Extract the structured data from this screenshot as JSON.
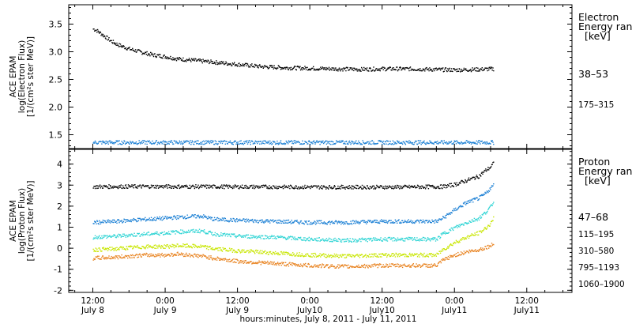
{
  "chart_data": [
    {
      "type": "scatter",
      "panel": "electron",
      "ylabel_lines": [
        "ACE EPAM",
        "log(Electron Flux)",
        "[1/(cm²s ster MeV)]"
      ],
      "legend_title": [
        "Electron",
        "Energy range",
        "[keV]"
      ],
      "yticks": [
        "1.5",
        "2.0",
        "2.5",
        "3.0",
        "3.5"
      ],
      "ylim": [
        1.25,
        3.85
      ],
      "grid": false,
      "series": [
        {
          "name": "38–53",
          "color": "#000000",
          "x": [
            0,
            0.5,
            1,
            2,
            3,
            4,
            5,
            6,
            8,
            10,
            12,
            14,
            16,
            18,
            20,
            24,
            28,
            32,
            36,
            40,
            44,
            48,
            52,
            56,
            60,
            64,
            66.5
          ],
          "y": [
            3.42,
            3.4,
            3.36,
            3.28,
            3.2,
            3.14,
            3.1,
            3.06,
            3.0,
            2.95,
            2.92,
            2.88,
            2.86,
            2.84,
            2.82,
            2.78,
            2.74,
            2.72,
            2.71,
            2.7,
            2.69,
            2.7,
            2.7,
            2.69,
            2.68,
            2.69,
            2.7
          ]
        },
        {
          "name": "175–315",
          "color": "#1a7fd4",
          "x": [
            0,
            66.5
          ],
          "y": [
            1.37,
            1.37
          ]
        }
      ]
    },
    {
      "type": "scatter",
      "panel": "proton",
      "ylabel_lines": [
        "ACE EPAM",
        "log(Proton Flux)",
        "[1/(cm²s ster MeV)]"
      ],
      "legend_title": [
        "Proton",
        "Energy range",
        "[keV]"
      ],
      "yticks": [
        "-2",
        "-1",
        "0",
        "1",
        "2",
        "3",
        "4"
      ],
      "ylim": [
        -2.1,
        4.7
      ],
      "grid": false,
      "series": [
        {
          "name": "47–68",
          "color": "#000000",
          "x": [
            0,
            10,
            20,
            30,
            40,
            50,
            58,
            60,
            62,
            64,
            65,
            66,
            66.5
          ],
          "y": [
            2.95,
            2.96,
            2.95,
            2.94,
            2.93,
            2.93,
            2.95,
            3.05,
            3.25,
            3.45,
            3.7,
            3.9,
            4.1
          ]
        },
        {
          "name": "115–195",
          "color": "#1a7fd4",
          "x": [
            0,
            4,
            6,
            9,
            12,
            14,
            18,
            20,
            24,
            30,
            36,
            42,
            48,
            54,
            57,
            58,
            60,
            62,
            64,
            65,
            66,
            66.5
          ],
          "y": [
            1.25,
            1.3,
            1.35,
            1.4,
            1.45,
            1.5,
            1.55,
            1.4,
            1.35,
            1.3,
            1.25,
            1.25,
            1.3,
            1.3,
            1.3,
            1.45,
            1.85,
            2.2,
            2.4,
            2.6,
            2.9,
            3.05
          ]
        },
        {
          "name": "310–580",
          "color": "#2fd4d4",
          "x": [
            0,
            4,
            6,
            9,
            12,
            14,
            18,
            20,
            24,
            30,
            36,
            42,
            48,
            54,
            57,
            58,
            60,
            62,
            64,
            65,
            66,
            66.5
          ],
          "y": [
            0.55,
            0.6,
            0.65,
            0.7,
            0.75,
            0.8,
            0.85,
            0.7,
            0.6,
            0.55,
            0.45,
            0.4,
            0.45,
            0.45,
            0.45,
            0.7,
            1.0,
            1.25,
            1.45,
            1.7,
            2.0,
            2.3
          ]
        },
        {
          "name": "795–1193",
          "color": "#c8e600",
          "x": [
            0,
            4,
            6,
            9,
            12,
            14,
            18,
            20,
            24,
            30,
            36,
            42,
            48,
            54,
            57,
            58,
            60,
            62,
            64,
            65,
            66,
            66.5
          ],
          "y": [
            -0.05,
            0.0,
            0.05,
            0.1,
            0.1,
            0.15,
            0.1,
            0.0,
            -0.1,
            -0.2,
            -0.3,
            -0.35,
            -0.3,
            -0.3,
            -0.3,
            -0.05,
            0.3,
            0.55,
            0.75,
            0.95,
            1.2,
            1.5
          ]
        },
        {
          "name": "1060–1900",
          "color": "#e8821e",
          "x": [
            0,
            4,
            6,
            9,
            12,
            14,
            18,
            20,
            24,
            30,
            36,
            42,
            48,
            54,
            57,
            58,
            60,
            62,
            64,
            65,
            66,
            66.5
          ],
          "y": [
            -0.45,
            -0.4,
            -0.35,
            -0.3,
            -0.3,
            -0.25,
            -0.35,
            -0.45,
            -0.6,
            -0.7,
            -0.8,
            -0.85,
            -0.8,
            -0.8,
            -0.8,
            -0.55,
            -0.3,
            -0.15,
            -0.05,
            0.05,
            0.15,
            0.25
          ]
        }
      ]
    }
  ],
  "xaxis": {
    "range": [
      -4,
      79.5
    ],
    "xlabel": "hours:minutes, July  8, 2011 - July 11, 2011",
    "ticks": [
      {
        "x": 0,
        "label": "12:00",
        "sub": "July 8"
      },
      {
        "x": 12,
        "label": "0:00",
        "sub": "July 9"
      },
      {
        "x": 24,
        "label": "12:00",
        "sub": "July 9"
      },
      {
        "x": 36,
        "label": "0:00",
        "sub": "July10"
      },
      {
        "x": 48,
        "label": "12:00",
        "sub": "July10"
      },
      {
        "x": 60,
        "label": "0:00",
        "sub": "July11"
      },
      {
        "x": 72,
        "label": "12:00",
        "sub": "July11"
      }
    ]
  }
}
